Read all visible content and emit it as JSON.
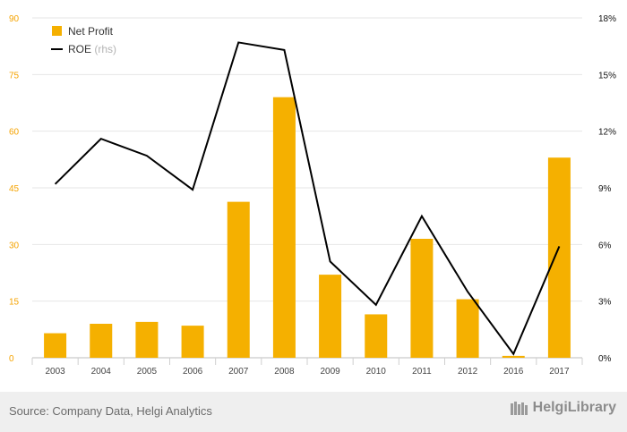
{
  "chart_data": {
    "type": "bar+line",
    "categories": [
      "2003",
      "2004",
      "2005",
      "2006",
      "2007",
      "2008",
      "2009",
      "2010",
      "2011",
      "2012",
      "2016",
      "2017"
    ],
    "series": [
      {
        "name": "Net Profit",
        "axis": "left",
        "type": "bar",
        "color": "#f5b000",
        "values": [
          6.5,
          9.0,
          9.5,
          8.5,
          41.3,
          69.0,
          22.0,
          11.5,
          31.5,
          15.5,
          0.5,
          53.0
        ]
      },
      {
        "name": "ROE",
        "axis_note": "(rhs)",
        "axis": "right",
        "type": "line",
        "color": "#000000",
        "values": [
          9.2,
          11.6,
          10.7,
          8.9,
          16.7,
          16.3,
          5.1,
          2.8,
          7.5,
          3.5,
          0.2,
          5.9
        ]
      }
    ],
    "left_axis": {
      "min": 0,
      "max": 90,
      "ticks": [
        "0",
        "15",
        "30",
        "45",
        "60",
        "75",
        "90"
      ]
    },
    "right_axis": {
      "min": 0,
      "max": 18,
      "ticks": [
        "0%",
        "3%",
        "6%",
        "9%",
        "12%",
        "15%",
        "18%"
      ]
    },
    "legend": "top-left"
  },
  "footer": {
    "source": "Source: Company Data, Helgi Analytics",
    "brand": "HelgiLibrary"
  }
}
